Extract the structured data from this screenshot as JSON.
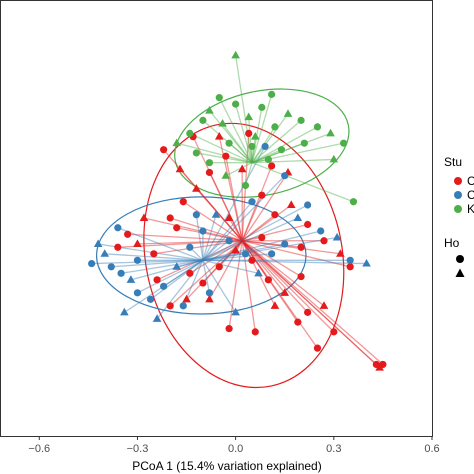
{
  "chart_data": {
    "type": "scatter",
    "title": "",
    "xlabel": "PCoA 1 (15.4% variation explained)",
    "ylabel": "",
    "xlim": [
      -0.72,
      0.6
    ],
    "ylim": [
      -0.62,
      0.72
    ],
    "x_ticks": [
      "−0.6",
      "−0.3",
      "0.0",
      "0.3",
      "0.6"
    ],
    "x_tick_values": [
      -0.6,
      -0.3,
      0.0,
      0.3,
      0.6
    ],
    "grid": false,
    "legend_placement": "right, clipped",
    "legend_color_title": "Stu",
    "legend_shape_title": "Ho",
    "legend_color_labels": [
      "C",
      "C",
      "K"
    ],
    "legend_shape_labels": [
      "",
      ""
    ],
    "colors": {
      "red": "#e41a1c",
      "blue": "#377eb8",
      "green": "#4daf4a"
    },
    "series": [
      {
        "color": "red",
        "centroid": [
          0.02,
          -0.02
        ],
        "ellipse": {
          "cx": 0.025,
          "cy": -0.065,
          "rx": 0.3,
          "ry": 0.41,
          "rotation_deg": -12
        },
        "points": [
          [
            0.45,
            -0.4
          ],
          [
            0.44,
            -0.41
          ],
          [
            0.43,
            -0.4
          ],
          [
            0.3,
            -0.3
          ],
          [
            0.27,
            -0.22
          ],
          [
            0.22,
            -0.24
          ],
          [
            0.19,
            -0.27
          ],
          [
            0.15,
            -0.18
          ],
          [
            0.1,
            -0.14
          ],
          [
            0.05,
            -0.08
          ],
          [
            0.0,
            -0.05
          ],
          [
            -0.05,
            -0.1
          ],
          [
            -0.1,
            -0.15
          ],
          [
            -0.15,
            -0.2
          ],
          [
            -0.2,
            -0.22
          ],
          [
            -0.25,
            -0.06
          ],
          [
            -0.3,
            -0.03
          ],
          [
            -0.33,
            0.0
          ],
          [
            -0.36,
            -0.04
          ],
          [
            -0.28,
            0.05
          ],
          [
            -0.2,
            0.05
          ],
          [
            -0.16,
            0.1
          ],
          [
            -0.12,
            0.14
          ],
          [
            -0.08,
            0.19
          ],
          [
            -0.03,
            0.24
          ],
          [
            0.02,
            0.2
          ],
          [
            0.08,
            0.12
          ],
          [
            0.12,
            0.06
          ],
          [
            0.17,
            0.09
          ],
          [
            0.22,
            0.03
          ],
          [
            0.27,
            -0.02
          ],
          [
            0.32,
            -0.06
          ],
          [
            0.35,
            -0.1
          ],
          [
            0.2,
            -0.13
          ],
          [
            0.12,
            -0.22
          ],
          [
            0.06,
            -0.3
          ],
          [
            -0.02,
            -0.29
          ],
          [
            -0.08,
            -0.2
          ],
          [
            -0.14,
            -0.12
          ],
          [
            -0.24,
            -0.14
          ],
          [
            -0.17,
            0.2
          ],
          [
            -0.22,
            0.26
          ],
          [
            -0.13,
            0.3
          ],
          [
            -0.05,
            0.3
          ],
          [
            0.04,
            0.31
          ],
          [
            0.11,
            0.21
          ],
          [
            0.16,
            0.19
          ],
          [
            0.2,
            -0.04
          ],
          [
            0.08,
            -0.01
          ],
          [
            -0.02,
            0.05
          ],
          [
            -0.18,
            0.02
          ],
          [
            0.25,
            -0.35
          ]
        ]
      },
      {
        "color": "blue",
        "centroid": [
          -0.1,
          -0.08
        ],
        "ellipse": {
          "cx": -0.105,
          "cy": -0.065,
          "rx": 0.32,
          "ry": 0.18,
          "rotation_deg": 0
        },
        "points": [
          [
            -0.38,
            -0.1
          ],
          [
            -0.4,
            -0.06
          ],
          [
            -0.35,
            -0.12
          ],
          [
            -0.3,
            -0.08
          ],
          [
            -0.32,
            -0.14
          ],
          [
            -0.26,
            -0.2
          ],
          [
            -0.22,
            -0.16
          ],
          [
            -0.18,
            -0.1
          ],
          [
            -0.14,
            -0.04
          ],
          [
            -0.1,
            0.01
          ],
          [
            -0.06,
            0.06
          ],
          [
            -0.02,
            -0.02
          ],
          [
            0.03,
            -0.06
          ],
          [
            0.07,
            -0.12
          ],
          [
            0.11,
            -0.06
          ],
          [
            0.15,
            -0.03
          ],
          [
            0.19,
            0.05
          ],
          [
            0.22,
            0.09
          ],
          [
            0.26,
            0.01
          ],
          [
            0.31,
            -0.01
          ],
          [
            0.35,
            -0.08
          ],
          [
            -0.44,
            -0.09
          ],
          [
            -0.42,
            -0.03
          ],
          [
            -0.36,
            0.02
          ],
          [
            -0.3,
            -0.18
          ],
          [
            -0.24,
            -0.26
          ],
          [
            -0.16,
            -0.22
          ],
          [
            -0.08,
            -0.18
          ],
          [
            0.0,
            -0.24
          ],
          [
            0.05,
            0.1
          ],
          [
            -0.12,
            0.06
          ],
          [
            0.4,
            -0.09
          ],
          [
            0.09,
            0.27
          ],
          [
            0.15,
            0.18
          ],
          [
            -0.34,
            -0.24
          ]
        ]
      },
      {
        "color": "green",
        "centroid": [
          0.05,
          0.22
        ],
        "ellipse": {
          "cx": 0.08,
          "cy": 0.28,
          "rx": 0.27,
          "ry": 0.16,
          "rotation_deg": -12
        },
        "points": [
          [
            -0.1,
            0.35
          ],
          [
            -0.08,
            0.38
          ],
          [
            -0.05,
            0.42
          ],
          [
            0.0,
            0.4
          ],
          [
            0.04,
            0.36
          ],
          [
            0.08,
            0.39
          ],
          [
            0.12,
            0.33
          ],
          [
            0.16,
            0.37
          ],
          [
            0.2,
            0.35
          ],
          [
            0.25,
            0.33
          ],
          [
            0.29,
            0.31
          ],
          [
            0.33,
            0.28
          ],
          [
            -0.14,
            0.31
          ],
          [
            -0.18,
            0.28
          ],
          [
            -0.12,
            0.25
          ],
          [
            -0.08,
            0.22
          ],
          [
            -0.03,
            0.18
          ],
          [
            0.03,
            0.15
          ],
          [
            0.1,
            0.23
          ],
          [
            0.06,
            0.3
          ],
          [
            0.14,
            0.26
          ],
          [
            -0.02,
            0.28
          ],
          [
            0.0,
            0.55
          ],
          [
            0.11,
            0.43
          ],
          [
            0.21,
            0.28
          ],
          [
            0.3,
            0.23
          ],
          [
            0.36,
            0.1
          ],
          [
            0.05,
            0.27
          ],
          [
            -0.04,
            0.34
          ]
        ]
      }
    ]
  }
}
